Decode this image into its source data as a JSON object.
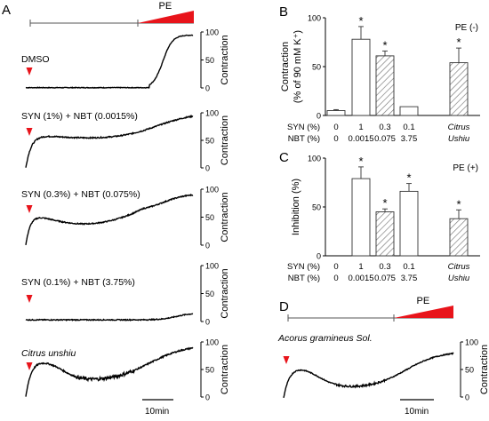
{
  "panel_a": {
    "letter": "A",
    "pe_label": "PE",
    "axis_label": "Contraction",
    "ticks": [
      "100",
      "50",
      "0"
    ],
    "scale_bar": "10min",
    "traces": [
      {
        "label": "DMSO",
        "italic": false,
        "final_level": 95
      },
      {
        "label": "SYN (1%) + NBT (0.0015%)",
        "italic": false,
        "final_level": 95
      },
      {
        "label": "SYN (0.3%) + NBT (0.075%)",
        "italic": false,
        "final_level": 80
      },
      {
        "label": "SYN (0.1%) + NBT (3.75%)",
        "italic": false,
        "final_level": 15
      },
      {
        "label": "Citrus unshiu",
        "italic": true,
        "final_level": 95
      }
    ]
  },
  "chart_data": [
    {
      "type": "bar",
      "panel": "B",
      "annotation": "PE (-)",
      "ylabel_line1": "Contraction",
      "ylabel_line2": "(% of 90 mM K⁺)",
      "ylim": [
        0,
        100
      ],
      "yticks": [
        "0",
        "50",
        "100"
      ],
      "row_labels": [
        "SYN (%)",
        "NBT (%)"
      ],
      "categories": [
        {
          "syn": "0",
          "nbt": "0"
        },
        {
          "syn": "1",
          "nbt": "0.0015"
        },
        {
          "syn": "0.3",
          "nbt": "0.075"
        },
        {
          "syn": "0.1",
          "nbt": "3.75"
        },
        {
          "syn": "Citrus",
          "nbt": "Ushiu",
          "italic": true
        }
      ],
      "values": [
        5,
        78,
        61,
        9,
        54
      ],
      "errors": [
        1,
        13,
        5,
        0,
        15
      ],
      "hatched": [
        false,
        false,
        true,
        false,
        true
      ],
      "significant": [
        false,
        true,
        true,
        false,
        true
      ]
    },
    {
      "type": "bar",
      "panel": "C",
      "annotation": "PE (+)",
      "ylabel": "Inhibition (%)",
      "ylim": [
        0,
        100
      ],
      "yticks": [
        "0",
        "50",
        "100"
      ],
      "row_labels": [
        "SYN (%)",
        "NBT (%)"
      ],
      "categories": [
        {
          "syn": "0",
          "nbt": "0"
        },
        {
          "syn": "1",
          "nbt": "0.0015"
        },
        {
          "syn": "0.3",
          "nbt": "0.075"
        },
        {
          "syn": "0.1",
          "nbt": "3.75"
        },
        {
          "syn": "Citrus",
          "nbt": "Ushiu",
          "italic": true
        }
      ],
      "values": [
        0,
        79,
        45,
        66,
        38
      ],
      "errors": [
        0,
        12,
        3,
        8,
        9
      ],
      "hatched": [
        false,
        false,
        true,
        false,
        true
      ],
      "significant": [
        false,
        true,
        true,
        true,
        true
      ]
    }
  ],
  "panel_d": {
    "letter": "D",
    "pe_label": "PE",
    "label": "Acorus gramineus Sol.",
    "axis_label": "Contraction",
    "ticks": [
      "100",
      "50",
      "0"
    ],
    "scale_bar": "10min"
  },
  "panel_b_letter": "B",
  "panel_c_letter": "C",
  "star": "*",
  "arrow_color": "#e8141b"
}
